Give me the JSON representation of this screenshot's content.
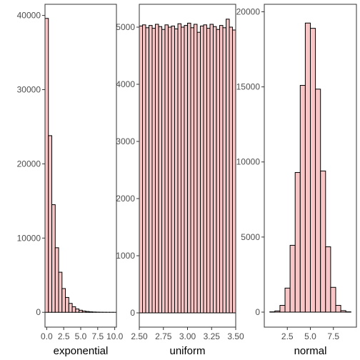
{
  "colors": {
    "bar_fill": "#f8c6c6",
    "bar_stroke": "#000000",
    "frame": "#333333",
    "tick_text": "#4d4d4d"
  },
  "chart_data": [
    {
      "type": "bar",
      "xlabel": "exponential",
      "ylabel": "",
      "binwidth": 0.5,
      "xlim": [
        -0.25,
        10.25
      ],
      "ylim": [
        -2000,
        41500
      ],
      "x": [
        0,
        0.5,
        1,
        1.5,
        2,
        2.5,
        3,
        3.5,
        4,
        4.5,
        5,
        5.5,
        6,
        6.5,
        7,
        7.5,
        8,
        8.5,
        9,
        9.5,
        10
      ],
      "values": [
        39600,
        23800,
        14500,
        8700,
        5400,
        3200,
        2000,
        1200,
        750,
        450,
        280,
        170,
        110,
        65,
        40,
        25,
        15,
        10,
        6,
        4,
        2
      ],
      "xticks": [
        0,
        2.5,
        5,
        7.5,
        10
      ],
      "xtick_labels": [
        "0.0",
        "2.5",
        "5.0",
        "7.5",
        "10.0"
      ],
      "yticks": [
        0,
        10000,
        20000,
        30000,
        40000
      ],
      "ytick_labels": [
        "0",
        "10000",
        "20000",
        "30000",
        "40000"
      ],
      "grid": false
    },
    {
      "type": "bar",
      "xlabel": "uniform",
      "ylabel": "",
      "binwidth": 0.0333,
      "xlim": [
        2.5,
        3.5
      ],
      "ylim": [
        -250,
        5400
      ],
      "x": [
        2.517,
        2.55,
        2.583,
        2.617,
        2.65,
        2.683,
        2.717,
        2.75,
        2.783,
        2.817,
        2.85,
        2.883,
        2.917,
        2.95,
        2.983,
        3.017,
        3.05,
        3.083,
        3.117,
        3.15,
        3.183,
        3.217,
        3.25,
        3.283,
        3.317,
        3.35,
        3.383,
        3.417,
        3.45,
        3.483
      ],
      "values": [
        5020,
        5040,
        4990,
        5030,
        4980,
        5050,
        5010,
        4960,
        5040,
        5000,
        5020,
        4970,
        5060,
        5000,
        5030,
        5070,
        4990,
        5050,
        4910,
        5020,
        5040,
        4980,
        5050,
        5010,
        4960,
        5030,
        4990,
        5140,
        5000,
        4950
      ],
      "xticks": [
        2.5,
        2.75,
        3.0,
        3.25,
        3.5
      ],
      "xtick_labels": [
        "2.50",
        "2.75",
        "3.00",
        "3.25",
        "3.50"
      ],
      "yticks": [
        0,
        1000,
        2000,
        3000,
        4000,
        5000
      ],
      "ytick_labels": [
        "0",
        "1000",
        "2000",
        "3000",
        "4000",
        "5000"
      ],
      "grid": false
    },
    {
      "type": "bar",
      "xlabel": "normal",
      "ylabel": "",
      "binwidth": 0.55,
      "xlim": [
        0,
        10
      ],
      "ylim": [
        -1000,
        20500
      ],
      "x": [
        0.875,
        1.425,
        1.975,
        2.525,
        3.075,
        3.625,
        4.175,
        4.725,
        5.275,
        5.825,
        6.375,
        6.925,
        7.475,
        8.025,
        8.575,
        9.125
      ],
      "values": [
        20,
        80,
        450,
        1600,
        4450,
        9300,
        15100,
        19250,
        18900,
        14850,
        9400,
        4350,
        1650,
        450,
        100,
        20
      ],
      "xticks": [
        2.5,
        5.0,
        7.5
      ],
      "xtick_labels": [
        "2.5",
        "5.0",
        "7.5"
      ],
      "yticks": [
        0,
        5000,
        10000,
        15000,
        20000
      ],
      "ytick_labels": [
        "0",
        "5000",
        "10000",
        "15000",
        "20000"
      ],
      "grid": false
    }
  ]
}
